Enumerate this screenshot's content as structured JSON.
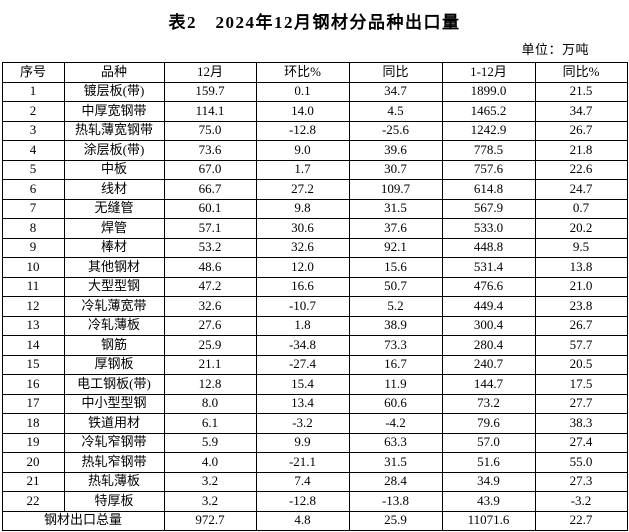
{
  "title": "表2　2024年12月钢材分品种出口量",
  "unit_label": "单位：万吨",
  "table": {
    "headers": [
      "序号",
      "品种",
      "12月",
      "环比%",
      "同比",
      "1-12月",
      "同比%"
    ],
    "rows": [
      [
        "1",
        "镀层板(带)",
        "159.7",
        "0.1",
        "34.7",
        "1899.0",
        "21.5"
      ],
      [
        "2",
        "中厚宽钢带",
        "114.1",
        "14.0",
        "4.5",
        "1465.2",
        "34.7"
      ],
      [
        "3",
        "热轧薄宽钢带",
        "75.0",
        "-12.8",
        "-25.6",
        "1242.9",
        "26.7"
      ],
      [
        "4",
        "涂层板(带)",
        "73.6",
        "9.0",
        "39.6",
        "778.5",
        "21.8"
      ],
      [
        "5",
        "中板",
        "67.0",
        "1.7",
        "30.7",
        "757.6",
        "22.6"
      ],
      [
        "6",
        "线材",
        "66.7",
        "27.2",
        "109.7",
        "614.8",
        "24.7"
      ],
      [
        "7",
        "无缝管",
        "60.1",
        "9.8",
        "31.5",
        "567.9",
        "0.7"
      ],
      [
        "8",
        "焊管",
        "57.1",
        "30.6",
        "37.6",
        "533.0",
        "20.2"
      ],
      [
        "9",
        "棒材",
        "53.2",
        "32.6",
        "92.1",
        "448.8",
        "9.5"
      ],
      [
        "10",
        "其他钢材",
        "48.6",
        "12.0",
        "15.6",
        "531.4",
        "13.8"
      ],
      [
        "11",
        "大型型钢",
        "47.2",
        "16.6",
        "50.7",
        "476.6",
        "21.0"
      ],
      [
        "12",
        "冷轧薄宽带",
        "32.6",
        "-10.7",
        "5.2",
        "449.4",
        "23.8"
      ],
      [
        "13",
        "冷轧薄板",
        "27.6",
        "1.8",
        "38.9",
        "300.4",
        "26.7"
      ],
      [
        "14",
        "钢筋",
        "25.9",
        "-34.8",
        "73.3",
        "280.4",
        "57.7"
      ],
      [
        "15",
        "厚钢板",
        "21.1",
        "-27.4",
        "16.7",
        "240.7",
        "20.5"
      ],
      [
        "16",
        "电工钢板(带)",
        "12.8",
        "15.4",
        "11.9",
        "144.7",
        "17.5"
      ],
      [
        "17",
        "中小型型钢",
        "8.0",
        "13.4",
        "60.6",
        "73.2",
        "27.7"
      ],
      [
        "18",
        "铁道用材",
        "6.1",
        "-3.2",
        "-4.2",
        "79.6",
        "38.3"
      ],
      [
        "19",
        "冷轧窄钢带",
        "5.9",
        "9.9",
        "63.3",
        "57.0",
        "27.4"
      ],
      [
        "20",
        "热轧窄钢带",
        "4.0",
        "-21.1",
        "31.5",
        "51.6",
        "55.0"
      ],
      [
        "21",
        "热轧薄板",
        "3.2",
        "7.4",
        "28.4",
        "34.9",
        "27.3"
      ],
      [
        "22",
        "特厚板",
        "3.2",
        "-12.8",
        "-13.8",
        "43.9",
        "-3.2"
      ]
    ],
    "total_row": {
      "label": "钢材出口总量",
      "values": [
        "972.7",
        "4.8",
        "25.9",
        "11071.6",
        "22.7"
      ]
    }
  }
}
